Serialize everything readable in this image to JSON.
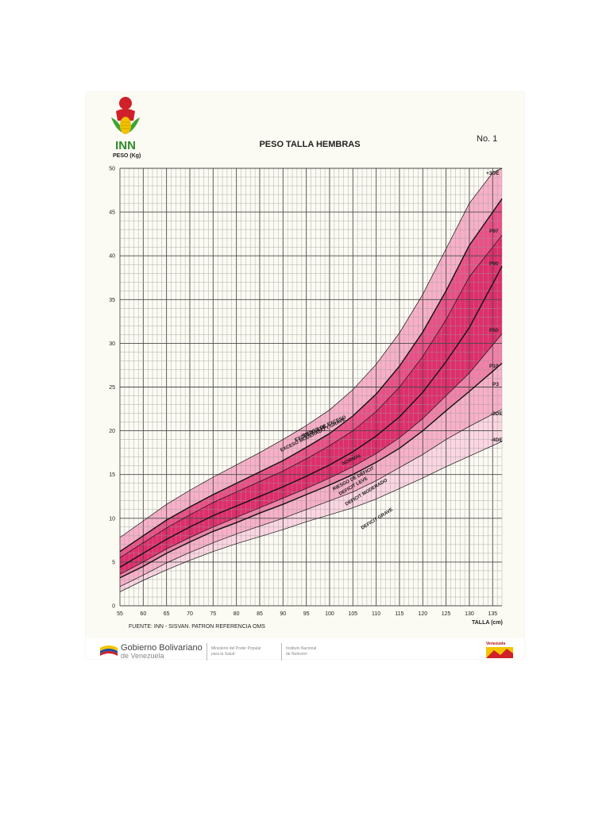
{
  "header": {
    "logo_text": "INN",
    "title": "PESO TALLA HEMBRAS",
    "sheet_number": "No. 1",
    "y_axis_label": "PESO (Kg)",
    "x_axis_label": "TALLA (cm)",
    "source": "FUENTE: INN - SISVAN. PATRON REFERENCIA OMS"
  },
  "footer": {
    "government_line1": "Gobierno Bolivariano",
    "government_line2": "de Venezuela",
    "ministry_line1": "Ministerio del Poder Popular",
    "ministry_line2": "para la Salud",
    "institute_line1": "Instituto Nacional",
    "institute_line2": "de Nutrición",
    "country_badge": "Venezuela"
  },
  "colors": {
    "band_grave": "#fbd6e2",
    "band_moderado": "#f7b0c8",
    "band_leve": "#f280a8",
    "band_normal_outer": "#ea4f86",
    "band_normal_inner": "#e02d6c",
    "grid_major": "#4a4a4a",
    "grid_minor": "#9a9a9a",
    "curve": "#111111"
  },
  "chart_data": {
    "type": "line",
    "xlim": [
      55,
      137
    ],
    "ylim": [
      0,
      50
    ],
    "x_ticks": [
      55,
      60,
      65,
      70,
      75,
      80,
      85,
      90,
      95,
      100,
      105,
      110,
      115,
      120,
      125,
      130,
      135
    ],
    "y_ticks": [
      0,
      5,
      10,
      15,
      20,
      25,
      30,
      35,
      40,
      45,
      50
    ],
    "grid": true,
    "x": [
      55,
      60,
      65,
      70,
      75,
      80,
      85,
      90,
      95,
      100,
      105,
      110,
      115,
      120,
      125,
      130,
      135
    ],
    "series": [
      {
        "name": "-4DE",
        "values": [
          1.6,
          2.9,
          4.1,
          5.2,
          6.2,
          7.1,
          7.9,
          8.7,
          9.6,
          10.4,
          11.2,
          12.2,
          13.4,
          14.6,
          15.9,
          17.1,
          18.3
        ]
      },
      {
        "name": "-3DE",
        "values": [
          2.2,
          3.5,
          4.9,
          6.1,
          7.2,
          8.2,
          9.1,
          10.0,
          11.0,
          12.0,
          13.0,
          14.3,
          15.8,
          17.3,
          19.0,
          20.5,
          21.9
        ]
      },
      {
        "name": "P3",
        "values": [
          3.2,
          4.5,
          6.0,
          7.3,
          8.5,
          9.5,
          10.6,
          11.6,
          12.7,
          13.8,
          15.0,
          16.4,
          18.0,
          20.0,
          22.3,
          24.5,
          26.8
        ]
      },
      {
        "name": "P10",
        "values": [
          3.6,
          5.0,
          6.5,
          7.8,
          9.0,
          10.1,
          11.2,
          12.3,
          13.4,
          14.6,
          15.9,
          17.4,
          19.2,
          21.4,
          24.0,
          26.6,
          29.8
        ]
      },
      {
        "name": "P50",
        "values": [
          4.4,
          6.0,
          7.6,
          9.0,
          10.3,
          11.4,
          12.5,
          13.6,
          14.8,
          16.1,
          17.6,
          19.4,
          21.6,
          24.4,
          27.9,
          31.8,
          36.8
        ]
      },
      {
        "name": "P90",
        "values": [
          5.5,
          7.2,
          8.9,
          10.4,
          11.8,
          13.0,
          14.2,
          15.4,
          16.8,
          18.3,
          20.0,
          22.2,
          25.0,
          28.5,
          32.7,
          37.6,
          41.0
        ]
      },
      {
        "name": "P97",
        "values": [
          6.2,
          8.0,
          9.8,
          11.3,
          12.7,
          14.0,
          15.3,
          16.6,
          18.1,
          19.7,
          21.7,
          24.2,
          27.4,
          31.3,
          36.0,
          41.2,
          45.0
        ]
      },
      {
        "name": "+3DE",
        "values": [
          7.8,
          9.7,
          11.6,
          13.2,
          14.7,
          16.1,
          17.5,
          19.0,
          20.6,
          22.4,
          24.7,
          27.6,
          31.2,
          35.6,
          40.8,
          46.0,
          49.5
        ]
      }
    ],
    "zones": [
      "EXCESO MODERADO Y GRAVE",
      "EXCESO LEVE",
      "RIESGO DE EXCESO",
      "NORMAL",
      "RIESGO DE DÉFICIT",
      "DEFICIT LEVE",
      "DEFICIT MODERADO",
      "DEFICIT GRAVE"
    ],
    "curve_labels": [
      "+3DE",
      "P97",
      "P90",
      "P50",
      "P10",
      "P3",
      "-3DE",
      "-4DE"
    ]
  }
}
